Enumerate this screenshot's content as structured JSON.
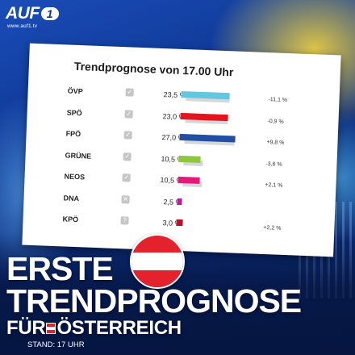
{
  "logo": {
    "text": "AUF",
    "number": "1",
    "url": "www.auf1.tv"
  },
  "card": {
    "title": "Trendprognose von 17.00 Uhr",
    "rows": [
      {
        "party": "ÖVP",
        "pct": "23,5 %",
        "value": 23.5,
        "delta": "-11,1 %",
        "color": "#63c7df",
        "status": "check-icon"
      },
      {
        "party": "SPÖ",
        "pct": "23,0 %",
        "value": 23.0,
        "delta": "-0,9 %",
        "color": "#e3141f",
        "status": "check-icon"
      },
      {
        "party": "FPÖ",
        "pct": "27,0 %",
        "value": 27.0,
        "delta": "+9,8 %",
        "color": "#214fa3",
        "status": "check-icon"
      },
      {
        "party": "GRÜNE",
        "pct": "10,5 %",
        "value": 10.5,
        "delta": "-3,6 %",
        "color": "#8dc63f",
        "status": "check-icon"
      },
      {
        "party": "NEOS",
        "pct": "10,5 %",
        "value": 10.5,
        "delta": "+2,1 %",
        "color": "#e3197b",
        "status": "check-icon"
      },
      {
        "party": "DNA",
        "pct": "2,5 %",
        "value": 2.5,
        "delta": "",
        "color": "#b21fa3",
        "status": "cross-icon"
      },
      {
        "party": "KPÖ",
        "pct": "3,0 %",
        "value": 3.0,
        "delta": "+2,2 %",
        "color": "#b3142b",
        "status": "question-icon"
      }
    ]
  },
  "headline": {
    "line1": "ERSTE",
    "line2": "TRENDPROGNOSE",
    "line3_a": "FÜR",
    "line3_b": "ÖSTERREICH",
    "stand": "STAND: 17 UHR"
  },
  "colors": {
    "brand": "#0d3590",
    "flag_red": "#e3222d"
  }
}
